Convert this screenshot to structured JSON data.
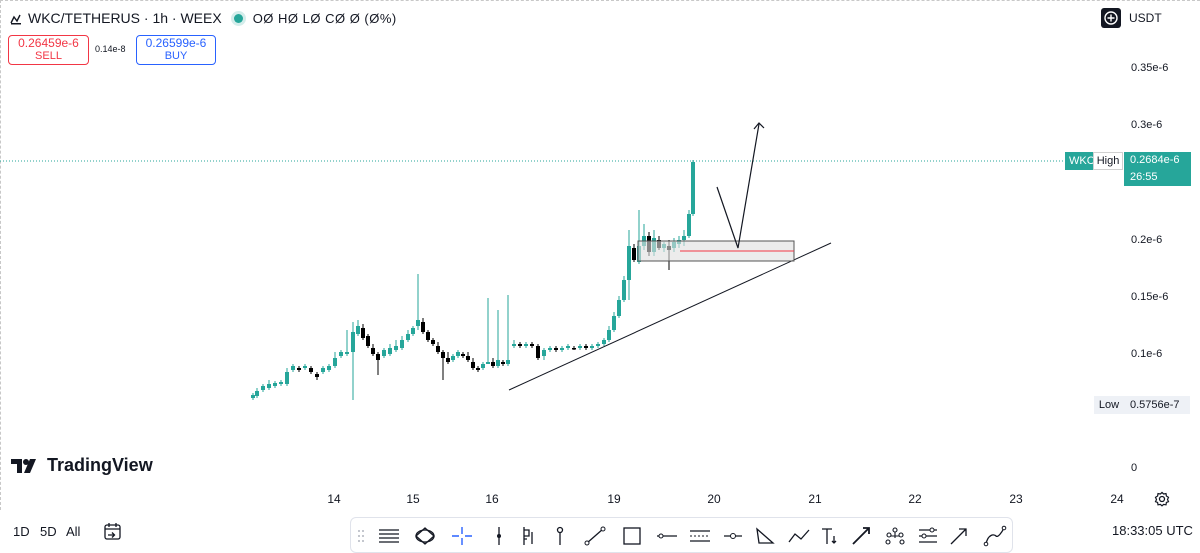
{
  "header": {
    "symbol": "WKC/TETHERUS · 1h · WEEX",
    "ohlc": "OØ HØ LØ CØ Ø (Ø%)"
  },
  "trade": {
    "sell_price": "0.26459e-6",
    "sell_label": "SELL",
    "spread": "0.14e-8",
    "buy_price": "0.26599e-6",
    "buy_label": "BUY"
  },
  "currency": "USDT",
  "price_scale": [
    "0.35e-6",
    "0.3e-6",
    "0.2e-6",
    "0.15e-6",
    "0.1e-6",
    "0"
  ],
  "high_marker": {
    "tag": "WKC",
    "name": "High",
    "price": "0.2684e-6",
    "countdown": "26:55"
  },
  "low_marker": {
    "name": "Low",
    "price": "0.5756e-7"
  },
  "logo": "TradingView",
  "time_axis": [
    "14",
    "15",
    "16",
    "19",
    "20",
    "21",
    "22",
    "23",
    "24"
  ],
  "bottom_bar": {
    "timeframes": [
      "1D",
      "5D",
      "All"
    ],
    "clock": "18:33:05 UTC"
  },
  "tools": [
    "drag-handle",
    "horizontal-lines-icon",
    "ellipse-icon",
    "crosshair-icon",
    "vertical-line-icon",
    "candles-icon",
    "pin-icon",
    "trend-line-icon",
    "rectangle-icon",
    "horizontal-ray-icon",
    "parallel-channel-icon",
    "info-line-icon",
    "triangle-pattern-icon",
    "path-icon",
    "text-icon",
    "arrow-marker-icon",
    "crowd-icon",
    "table-icon",
    "arrow-icon",
    "curve-icon"
  ],
  "colors": {
    "up": "#26a69a",
    "down": "#000000",
    "sell": "#f23645",
    "buy": "#2962ff"
  },
  "chart_data": {
    "type": "candlestick",
    "series_name": "WKC/TETHERUS",
    "price_high": 2.684e-07,
    "price_low": 5.756e-08,
    "ylim": [
      0,
      3.7e-07
    ],
    "x_ticks": [
      "14",
      "15",
      "16",
      "19",
      "20",
      "21",
      "22",
      "23",
      "24"
    ]
  }
}
